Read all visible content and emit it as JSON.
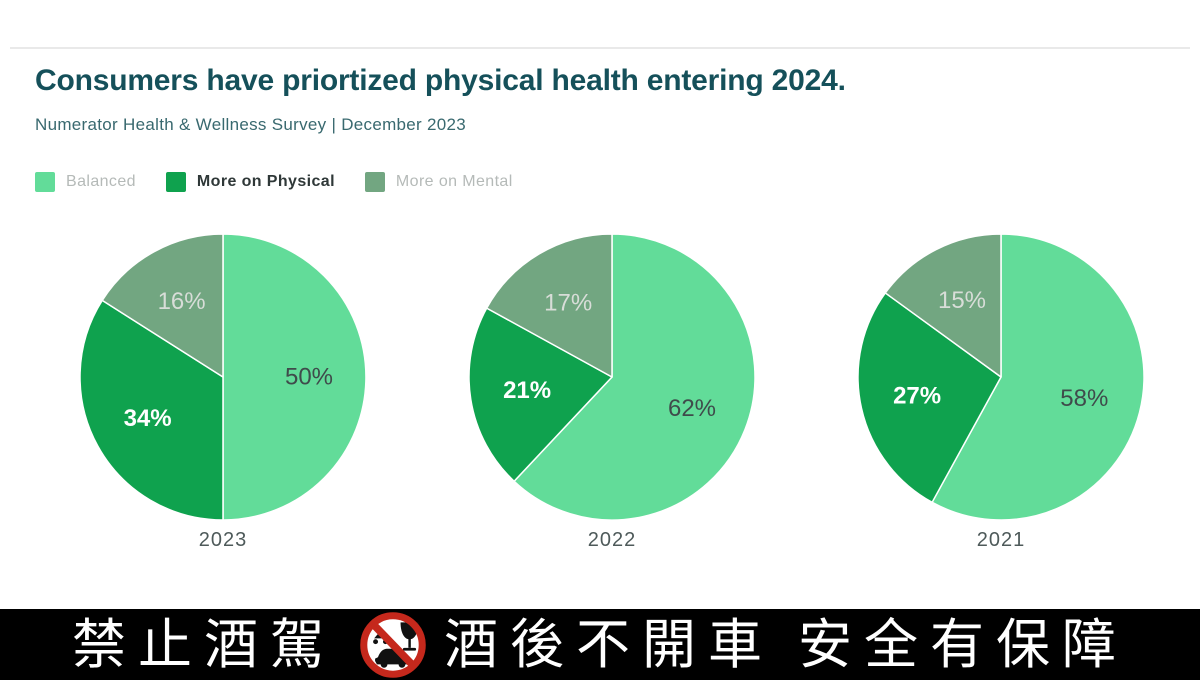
{
  "header": {
    "title": "Consumers have priortized physical health entering 2024.",
    "subtitle": "Numerator Health & Wellness Survey | December 2023"
  },
  "legend": {
    "items": [
      {
        "label": "Balanced",
        "color": "#62DC99",
        "emphasis": false
      },
      {
        "label": "More on Physical",
        "color": "#0FA24E",
        "emphasis": true
      },
      {
        "label": "More on Mental",
        "color": "#72A681",
        "emphasis": false
      }
    ]
  },
  "chart_data": {
    "type": "pie",
    "title": "Consumers have priortized physical health entering 2024.",
    "subtitle": "Numerator Health & Wellness Survey | December 2023",
    "legend_position": "top-left",
    "series_labels": [
      "Balanced",
      "More on Physical",
      "More on Mental"
    ],
    "series_colors": [
      "#62DC99",
      "#0FA24E",
      "#72A681"
    ],
    "slice_label_colors": [
      "#3F4B4B",
      "#FFFFFF",
      "#D8DDD8"
    ],
    "slice_label_bold": [
      false,
      true,
      false
    ],
    "pies": [
      {
        "year": "2023",
        "values": [
          50,
          34,
          16
        ],
        "labels": [
          "50%",
          "34%",
          "16%"
        ]
      },
      {
        "year": "2022",
        "values": [
          62,
          21,
          17
        ],
        "labels": [
          "62%",
          "21%",
          "17%"
        ]
      },
      {
        "year": "2021",
        "values": [
          58,
          27,
          15
        ],
        "labels": [
          "58%",
          "27%",
          "15%"
        ]
      }
    ]
  },
  "banner": {
    "text_left": "禁止酒駕",
    "text_mid": "酒後不開車",
    "text_right": "安全有保障",
    "icon": "no-drunk-driving-icon",
    "background": "#000000",
    "text_color": "#FFFFFF",
    "accent_red": "#C5281C"
  }
}
